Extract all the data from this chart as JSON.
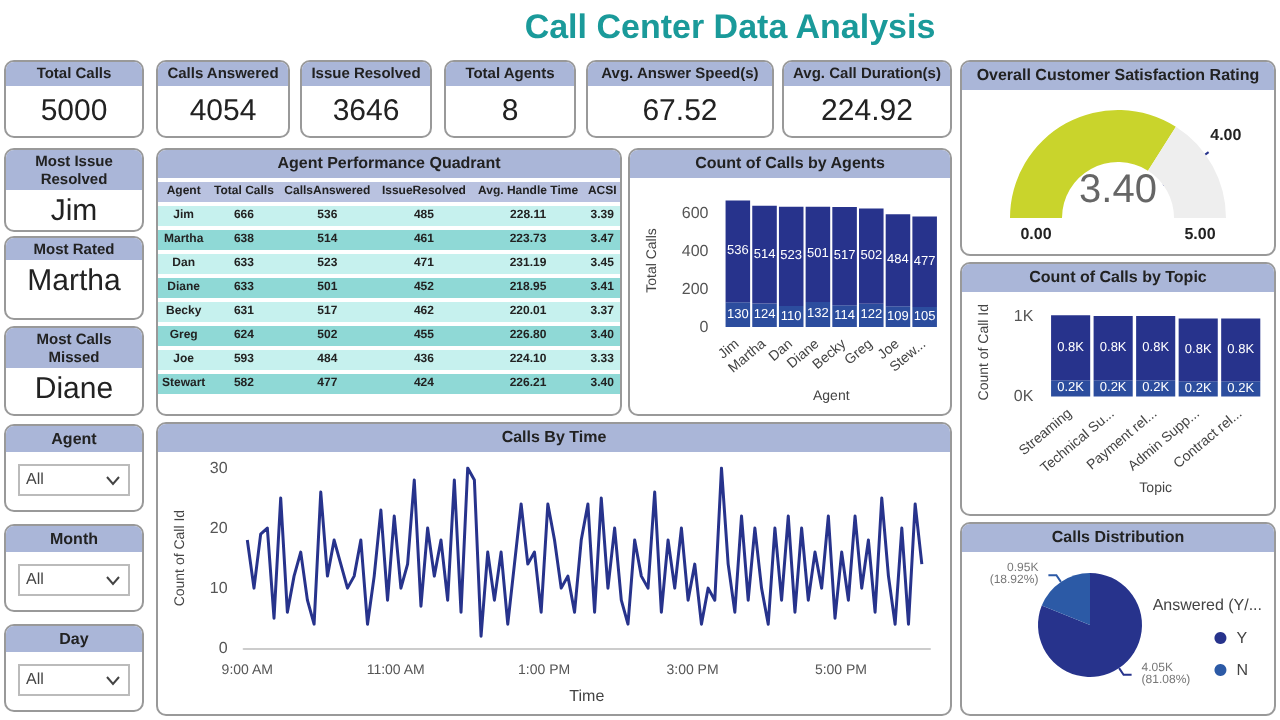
{
  "chart_data": [
    {
      "type": "other",
      "title": "Call Center Data Analysis",
      "categories": [
        "Total Calls",
        "Calls Answered",
        "Issue Resolved",
        "Total Agents",
        "Avg. Answer Speed(s)",
        "Avg. Call Duration(s)"
      ],
      "value_labels": [
        "5000",
        "4054",
        "3646",
        "8",
        "67.52",
        "224.92"
      ],
      "annotations": [
        "Most Issue Resolved",
        "Jim",
        "Most Rated",
        "Martha",
        "Most Calls Missed",
        "Diane",
        "Agent",
        "All",
        "Month",
        "All",
        "Day",
        "All"
      ]
    },
    {
      "type": "other",
      "title": "Agent Performance Quadrant",
      "categories": [
        "Agent",
        "Total Calls",
        "CallsAnswered",
        "IssueResolved",
        "Avg. Handle Time",
        "ACSI"
      ],
      "annotations": [
        "Jim",
        "666",
        "536",
        "485",
        "228.11",
        "3.39",
        "Martha",
        "638",
        "514",
        "461",
        "223.73",
        "3.47",
        "Dan",
        "633",
        "523",
        "471",
        "231.19",
        "3.45",
        "Diane",
        "633",
        "501",
        "452",
        "218.95",
        "3.41",
        "Becky",
        "631",
        "517",
        "462",
        "220.01",
        "3.37",
        "Greg",
        "624",
        "502",
        "455",
        "226.80",
        "3.40",
        "Joe",
        "593",
        "484",
        "436",
        "224.10",
        "3.33",
        "Stewart",
        "582",
        "477",
        "424",
        "226.21",
        "3.40"
      ]
    },
    {
      "type": "bar",
      "title": "Count of Calls by Agents",
      "xlabel": "Agent",
      "ylabel": "Total Calls",
      "categories": [
        "Jim",
        "Martha",
        "Dan",
        "Diane",
        "Becky",
        "Greg",
        "Joe",
        "Stew..."
      ],
      "stacked": true,
      "data_labels": true,
      "ylim": [
        0,
        700
      ],
      "yticks": [
        0,
        200,
        400,
        600
      ],
      "grid": false,
      "legend": false,
      "series": [
        {
          "color": "#2c4d9e",
          "values": [
            130,
            124,
            110,
            132,
            114,
            122,
            109,
            105
          ]
        },
        {
          "color": "#27338c",
          "values": [
            536,
            514,
            523,
            501,
            517,
            502,
            484,
            477
          ]
        }
      ]
    },
    {
      "type": "donut",
      "title": "Overall Customer Satisfaction Rating",
      "categories": [
        null,
        null
      ],
      "values": [
        68,
        32
      ],
      "colors": [
        "#c9d42c",
        "#eeeeee"
      ],
      "annotations": [
        "3.40",
        "0.00",
        "5.00",
        "4.00"
      ]
    },
    {
      "type": "bar",
      "title": "Count of Calls by Topic",
      "xlabel": "Topic",
      "ylabel": "Count of Call Id",
      "categories": [
        "Streaming",
        "Technical Su...",
        "Payment rel...",
        "Admin Supp...",
        "Contract rel..."
      ],
      "stacked": true,
      "ylim": [
        0,
        1.1
      ],
      "yticks": [
        {
          "value": 0,
          "label": "0K"
        },
        {
          "value": 1,
          "label": "1K"
        }
      ],
      "grid": false,
      "legend": false,
      "series": [
        {
          "color": "#2c4d9e",
          "values": [
            0.2,
            0.2,
            0.2,
            0.19,
            0.19
          ],
          "value_labels": [
            "0.2K",
            "0.2K",
            "0.2K",
            "0.2K",
            "0.2K"
          ]
        },
        {
          "color": "#27338c",
          "values": [
            0.81,
            0.8,
            0.8,
            0.78,
            0.78
          ],
          "value_labels": [
            "0.8K",
            "0.8K",
            "0.8K",
            "0.8K",
            "0.8K"
          ]
        }
      ]
    },
    {
      "type": "line",
      "title": "Calls By Time",
      "xlabel": "Time",
      "ylabel": "Count of Call Id",
      "xlim": [
        8.95,
        18.2
      ],
      "xticks": [
        {
          "value": 9,
          "label": "9:00 AM"
        },
        {
          "value": 11,
          "label": "11:00 AM"
        },
        {
          "value": 13,
          "label": "1:00 PM"
        },
        {
          "value": 15,
          "label": "3:00 PM"
        },
        {
          "value": 17,
          "label": "5:00 PM"
        }
      ],
      "ylim": [
        0,
        30
      ],
      "yticks": [
        0,
        10,
        20,
        30
      ],
      "grid": false,
      "legend": false,
      "marker": "none",
      "line_style": "solid",
      "x": [
        9,
        9.09,
        9.18,
        9.27,
        9.36,
        9.45,
        9.54,
        9.63,
        9.72,
        9.81,
        9.9,
        9.99,
        10.08,
        10.17,
        10.26,
        10.35,
        10.44,
        10.53,
        10.62,
        10.71,
        10.8,
        10.89,
        10.98,
        11.07,
        11.16,
        11.25,
        11.34,
        11.43,
        11.52,
        11.61,
        11.7,
        11.79,
        11.88,
        11.97,
        12.06,
        12.15,
        12.24,
        12.33,
        12.42,
        12.51,
        12.6,
        12.69,
        12.78,
        12.87,
        12.96,
        13.05,
        13.14,
        13.23,
        13.32,
        13.41,
        13.5,
        13.59,
        13.68,
        13.77,
        13.86,
        13.95,
        14.04,
        14.13,
        14.22,
        14.31,
        14.4,
        14.49,
        14.58,
        14.67,
        14.76,
        14.85,
        14.94,
        15.03,
        15.12,
        15.21,
        15.3,
        15.39,
        15.48,
        15.57,
        15.66,
        15.75,
        15.84,
        15.93,
        16.02,
        16.11,
        16.2,
        16.29,
        16.38,
        16.47,
        16.56,
        16.65,
        16.74,
        16.83,
        16.92,
        17.01,
        17.1,
        17.19,
        17.28,
        17.37,
        17.46,
        17.55,
        17.64,
        17.73,
        17.82,
        17.91,
        18,
        18.09
      ],
      "series": [
        {
          "color": "#27338c",
          "values": [
            18,
            10,
            19,
            20,
            5,
            25,
            6,
            12,
            16,
            8,
            4,
            26,
            12,
            18,
            14,
            10,
            12,
            18,
            4,
            12,
            23,
            8,
            22,
            10,
            14,
            28,
            7,
            20,
            12,
            18,
            8,
            28,
            6,
            30,
            28,
            2,
            16,
            8,
            16,
            4,
            14,
            24,
            14,
            16,
            6,
            24,
            18,
            10,
            12,
            6,
            18,
            24,
            6,
            25,
            10,
            20,
            8,
            4,
            18,
            12,
            10,
            26,
            6,
            18,
            10,
            20,
            8,
            14,
            4,
            10,
            8,
            30,
            14,
            6,
            22,
            8,
            20,
            10,
            4,
            20,
            8,
            22,
            6,
            20,
            8,
            16,
            10,
            22,
            5,
            16,
            8,
            22,
            10,
            18,
            6,
            25,
            12,
            4,
            20,
            4,
            24,
            14
          ]
        }
      ]
    },
    {
      "type": "pie",
      "title": "Calls Distribution",
      "legend_title": "Answered (Y/...",
      "legend": "right",
      "categories": [
        "Y",
        "N"
      ],
      "values": [
        81.08,
        18.92
      ],
      "colors": [
        "#27338c",
        "#2c5aa6"
      ],
      "value_labels": [
        "4.05K (81.08%)",
        "0.95K (18.92%)"
      ]
    }
  ]
}
